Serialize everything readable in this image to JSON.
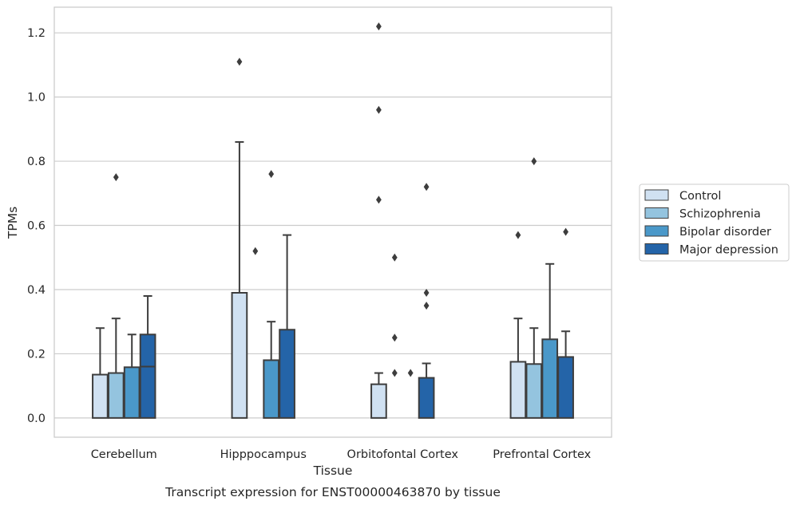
{
  "chart_data": {
    "type": "bar",
    "title": "",
    "caption": "Transcript expression for ENST00000463870 by tissue",
    "xlabel": "Tissue",
    "ylabel": "TPMs",
    "ylim": [
      -0.06,
      1.28
    ],
    "yticks": [
      0.0,
      0.2,
      0.4,
      0.6,
      0.8,
      1.0,
      1.2
    ],
    "ytick_labels": [
      "0.0",
      "0.2",
      "0.4",
      "0.6",
      "0.8",
      "1.0",
      "1.2"
    ],
    "grid": true,
    "legend_position": "right",
    "categories": [
      "Cerebellum",
      "Hipppocampus",
      "Orbitofontal Cortex",
      "Prefrontal Cortex"
    ],
    "series": [
      {
        "name": "Control",
        "color": "#d0e1f2",
        "values": [
          0.135,
          0.39,
          0.105,
          0.175
        ],
        "median": [
          0.0,
          0.0,
          0.0,
          0.0
        ],
        "whisker_high": [
          0.28,
          0.86,
          0.14,
          0.31
        ],
        "outliers": [
          [],
          [
            1.11
          ],
          [
            0.68,
            0.96,
            1.22
          ],
          [
            0.57
          ]
        ]
      },
      {
        "name": "Schizophrenia",
        "color": "#94c4df",
        "values": [
          0.14,
          0.0,
          0.0,
          0.168
        ],
        "median": [
          0.0,
          0.0,
          0.0,
          0.0
        ],
        "whisker_high": [
          0.31,
          0.0,
          0.0,
          0.28
        ],
        "outliers": [
          [
            0.75
          ],
          [
            0.52
          ],
          [
            0.14,
            0.25,
            0.5
          ],
          [
            0.8
          ]
        ]
      },
      {
        "name": "Bipolar disorder",
        "color": "#4a98c9",
        "values": [
          0.158,
          0.18,
          0.0,
          0.245
        ],
        "median": [
          0.0,
          0.0,
          0.0,
          0.0
        ],
        "whisker_high": [
          0.26,
          0.3,
          0.0,
          0.48
        ],
        "outliers": [
          [],
          [
            0.76
          ],
          [
            0.14
          ],
          []
        ]
      },
      {
        "name": "Major depression",
        "color": "#2464a8",
        "values": [
          0.26,
          0.275,
          0.125,
          0.19
        ],
        "median": [
          0.16,
          0.0,
          0.0,
          0.0
        ],
        "whisker_high": [
          0.38,
          0.57,
          0.17,
          0.27
        ],
        "outliers": [
          [],
          [],
          [
            0.35,
            0.39,
            0.72
          ],
          [
            0.58
          ]
        ]
      }
    ]
  }
}
